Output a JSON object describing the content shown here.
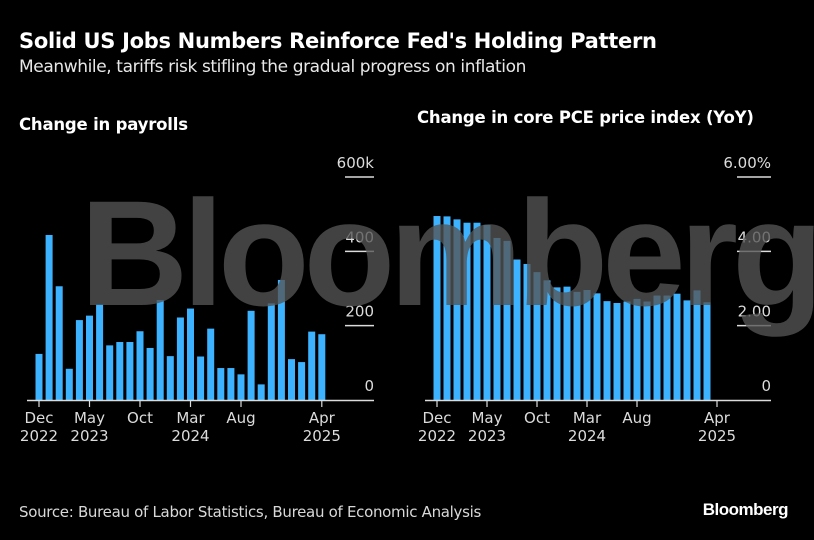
{
  "header": {
    "title": "Solid US Jobs Numbers Reinforce Fed's Holding Pattern",
    "subtitle": "Meanwhile, tariffs risk stifling the gradual progress on inflation"
  },
  "watermark": "Bloomberg",
  "footer": {
    "source": "Source: Bureau of Labor Statistics, Bureau of Economic Analysis",
    "brand": "Bloomberg"
  },
  "colors": {
    "bar": "#3db3ff",
    "background": "#000000",
    "grid": "#dcdcdc"
  },
  "chart_data": [
    {
      "type": "bar",
      "title": "Change in payrolls",
      "xlabel": "",
      "ylabel": "",
      "ylim": [
        0,
        600
      ],
      "yticks": [
        0,
        200,
        400,
        600
      ],
      "ytick_labels": [
        "0",
        "200",
        "400",
        "600k"
      ],
      "grid": true,
      "x_tick_labels": [
        {
          "index": 0,
          "line1": "Dec",
          "line2": "2022"
        },
        {
          "index": 5,
          "line1": "May",
          "line2": "2023"
        },
        {
          "index": 10,
          "line1": "Oct",
          "line2": ""
        },
        {
          "index": 15,
          "line1": "Mar",
          "line2": "2024"
        },
        {
          "index": 20,
          "line1": "Aug",
          "line2": ""
        },
        {
          "index": 28,
          "line1": "Apr",
          "line2": "2025"
        }
      ],
      "categories": [
        "Dec 2022",
        "Jan 2023",
        "Feb 2023",
        "Mar 2023",
        "Apr 2023",
        "May 2023",
        "Jun 2023",
        "Jul 2023",
        "Aug 2023",
        "Sep 2023",
        "Oct 2023",
        "Nov 2023",
        "Dec 2023",
        "Jan 2024",
        "Feb 2024",
        "Mar 2024",
        "Apr 2024",
        "May 2024",
        "Jun 2024",
        "Jul 2024",
        "Aug 2024",
        "Sep 2024",
        "Oct 2024",
        "Nov 2024",
        "Dec 2024",
        "Jan 2025",
        "Feb 2025",
        "Mar 2025",
        "Apr 2025"
      ],
      "values": [
        124,
        444,
        306,
        84,
        215,
        227,
        257,
        147,
        156,
        156,
        185,
        140,
        269,
        118,
        222,
        246,
        117,
        192,
        86,
        86,
        69,
        240,
        42,
        260,
        323,
        110,
        102,
        184,
        177
      ]
    },
    {
      "type": "bar",
      "title": "Change in core PCE price index (YoY)",
      "xlabel": "",
      "ylabel": "",
      "ylim": [
        0,
        6
      ],
      "yticks": [
        0,
        2,
        4,
        6
      ],
      "ytick_labels": [
        "0",
        "2.00",
        "4.00",
        "6.00%"
      ],
      "grid": true,
      "x_tick_labels": [
        {
          "index": 0,
          "line1": "Dec",
          "line2": "2022"
        },
        {
          "index": 5,
          "line1": "May",
          "line2": "2023"
        },
        {
          "index": 10,
          "line1": "Oct",
          "line2": ""
        },
        {
          "index": 15,
          "line1": "Mar",
          "line2": "2024"
        },
        {
          "index": 20,
          "line1": "Aug",
          "line2": ""
        },
        {
          "index": 28,
          "line1": "Apr",
          "line2": "2025"
        }
      ],
      "categories": [
        "Dec 2022",
        "Jan 2023",
        "Feb 2023",
        "Mar 2023",
        "Apr 2023",
        "May 2023",
        "Jun 2023",
        "Jul 2023",
        "Aug 2023",
        "Sep 2023",
        "Oct 2023",
        "Nov 2023",
        "Dec 2023",
        "Jan 2024",
        "Feb 2024",
        "Mar 2024",
        "Apr 2024",
        "May 2024",
        "Jun 2024",
        "Jul 2024",
        "Aug 2024",
        "Sep 2024",
        "Oct 2024",
        "Nov 2024",
        "Dec 2024",
        "Jan 2025",
        "Feb 2025",
        "Mar 2025"
      ],
      "values": [
        4.95,
        4.94,
        4.86,
        4.77,
        4.77,
        4.71,
        4.36,
        4.28,
        3.78,
        3.66,
        3.44,
        3.22,
        3.03,
        3.05,
        2.91,
        2.96,
        2.87,
        2.66,
        2.61,
        2.65,
        2.72,
        2.65,
        2.81,
        2.81,
        2.86,
        2.68,
        2.95,
        2.63
      ]
    }
  ]
}
